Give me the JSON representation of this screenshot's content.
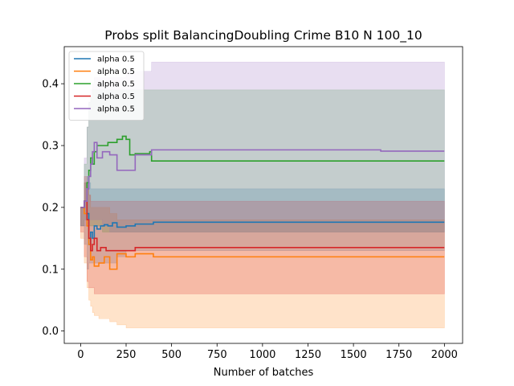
{
  "chart_data": {
    "type": "line",
    "title": "Probs split BalancingDoubling Crime B10 N 100_10",
    "xlabel": "Number of batches",
    "ylabel": "",
    "xlim": [
      -90,
      2100
    ],
    "ylim": [
      -0.02,
      0.46
    ],
    "xticks": [
      0,
      250,
      500,
      750,
      1000,
      1250,
      1500,
      1750,
      2000
    ],
    "yticks": [
      0.0,
      0.1,
      0.2,
      0.3,
      0.4
    ],
    "ytick_labels": [
      "0.0",
      "0.1",
      "0.2",
      "0.3",
      "0.4"
    ],
    "grid": false,
    "legend_position": "upper-left",
    "series": [
      {
        "name": "alpha 0.5",
        "color": "#1f77b4",
        "x": [
          0,
          20,
          35,
          45,
          55,
          65,
          75,
          90,
          110,
          130,
          150,
          175,
          200,
          250,
          300,
          400,
          600,
          1000,
          1650,
          2000
        ],
        "y": [
          0.2,
          0.21,
          0.19,
          0.14,
          0.16,
          0.15,
          0.17,
          0.165,
          0.17,
          0.172,
          0.17,
          0.175,
          0.168,
          0.17,
          0.173,
          0.176,
          0.176,
          0.176,
          0.176,
          0.176
        ],
        "band_low": [
          0.2,
          0.17,
          0.14,
          0.1,
          0.11,
          0.11,
          0.11,
          0.11,
          0.11,
          0.11,
          0.11,
          0.11,
          0.11,
          0.12,
          0.13,
          0.13,
          0.13,
          0.13,
          0.13,
          0.13
        ],
        "band_high": [
          0.2,
          0.24,
          0.25,
          0.24,
          0.23,
          0.23,
          0.23,
          0.23,
          0.23,
          0.23,
          0.23,
          0.23,
          0.23,
          0.23,
          0.23,
          0.23,
          0.23,
          0.23,
          0.23,
          0.23
        ]
      },
      {
        "name": "alpha 0.5",
        "color": "#ff7f0e",
        "x": [
          0,
          20,
          35,
          45,
          55,
          65,
          75,
          100,
          130,
          160,
          200,
          250,
          300,
          400,
          1000,
          2000
        ],
        "y": [
          0.2,
          0.19,
          0.17,
          0.14,
          0.115,
          0.12,
          0.105,
          0.11,
          0.12,
          0.1,
          0.125,
          0.12,
          0.125,
          0.12,
          0.12,
          0.12
        ],
        "band_low": [
          0.2,
          0.15,
          0.11,
          0.07,
          0.05,
          0.04,
          0.03,
          0.025,
          0.02,
          0.02,
          0.015,
          0.01,
          0.005,
          0.005,
          0.005,
          0.005
        ],
        "band_high": [
          0.2,
          0.24,
          0.23,
          0.22,
          0.2,
          0.2,
          0.2,
          0.2,
          0.2,
          0.19,
          0.18,
          0.18,
          0.18,
          0.18,
          0.18,
          0.18
        ]
      },
      {
        "name": "alpha 0.5",
        "color": "#2ca02c",
        "x": [
          0,
          20,
          35,
          45,
          55,
          65,
          75,
          90,
          120,
          150,
          200,
          230,
          250,
          270,
          300,
          380,
          390,
          600,
          1000,
          2000
        ],
        "y": [
          0.2,
          0.21,
          0.24,
          0.26,
          0.28,
          0.27,
          0.29,
          0.3,
          0.3,
          0.305,
          0.31,
          0.315,
          0.31,
          0.285,
          0.287,
          0.29,
          0.275,
          0.275,
          0.275,
          0.275
        ],
        "band_low": [
          0.2,
          0.17,
          0.18,
          0.18,
          0.17,
          0.17,
          0.17,
          0.17,
          0.17,
          0.16,
          0.16,
          0.16,
          0.16,
          0.16,
          0.16,
          0.16,
          0.16,
          0.16,
          0.16,
          0.16
        ],
        "band_high": [
          0.2,
          0.27,
          0.33,
          0.37,
          0.38,
          0.39,
          0.39,
          0.39,
          0.39,
          0.39,
          0.39,
          0.39,
          0.39,
          0.39,
          0.39,
          0.39,
          0.39,
          0.39,
          0.39,
          0.39
        ]
      },
      {
        "name": "alpha 0.5",
        "color": "#d62728",
        "x": [
          0,
          20,
          35,
          45,
          55,
          65,
          75,
          90,
          110,
          140,
          180,
          230,
          300,
          400,
          1000,
          2000
        ],
        "y": [
          0.2,
          0.21,
          0.18,
          0.15,
          0.13,
          0.14,
          0.15,
          0.13,
          0.135,
          0.13,
          0.13,
          0.13,
          0.135,
          0.135,
          0.135,
          0.135
        ],
        "band_low": [
          0.2,
          0.16,
          0.12,
          0.08,
          0.07,
          0.07,
          0.07,
          0.06,
          0.06,
          0.06,
          0.06,
          0.06,
          0.06,
          0.06,
          0.06,
          0.06
        ],
        "band_high": [
          0.2,
          0.25,
          0.24,
          0.22,
          0.21,
          0.21,
          0.21,
          0.21,
          0.21,
          0.21,
          0.21,
          0.21,
          0.21,
          0.21,
          0.21,
          0.21
        ]
      },
      {
        "name": "alpha 0.5",
        "color": "#9467bd",
        "x": [
          0,
          20,
          35,
          45,
          55,
          65,
          75,
          90,
          120,
          160,
          200,
          250,
          300,
          390,
          600,
          1000,
          1650,
          2000
        ],
        "y": [
          0.2,
          0.21,
          0.23,
          0.25,
          0.27,
          0.29,
          0.305,
          0.28,
          0.29,
          0.285,
          0.26,
          0.26,
          0.285,
          0.293,
          0.293,
          0.293,
          0.291,
          0.291
        ],
        "band_low": [
          0.2,
          0.17,
          0.17,
          0.18,
          0.18,
          0.18,
          0.18,
          0.18,
          0.18,
          0.17,
          0.16,
          0.16,
          0.16,
          0.16,
          0.16,
          0.16,
          0.16,
          0.16
        ],
        "band_high": [
          0.2,
          0.28,
          0.33,
          0.37,
          0.39,
          0.4,
          0.41,
          0.41,
          0.41,
          0.41,
          0.41,
          0.42,
          0.42,
          0.435,
          0.435,
          0.435,
          0.435,
          0.435
        ]
      }
    ]
  }
}
